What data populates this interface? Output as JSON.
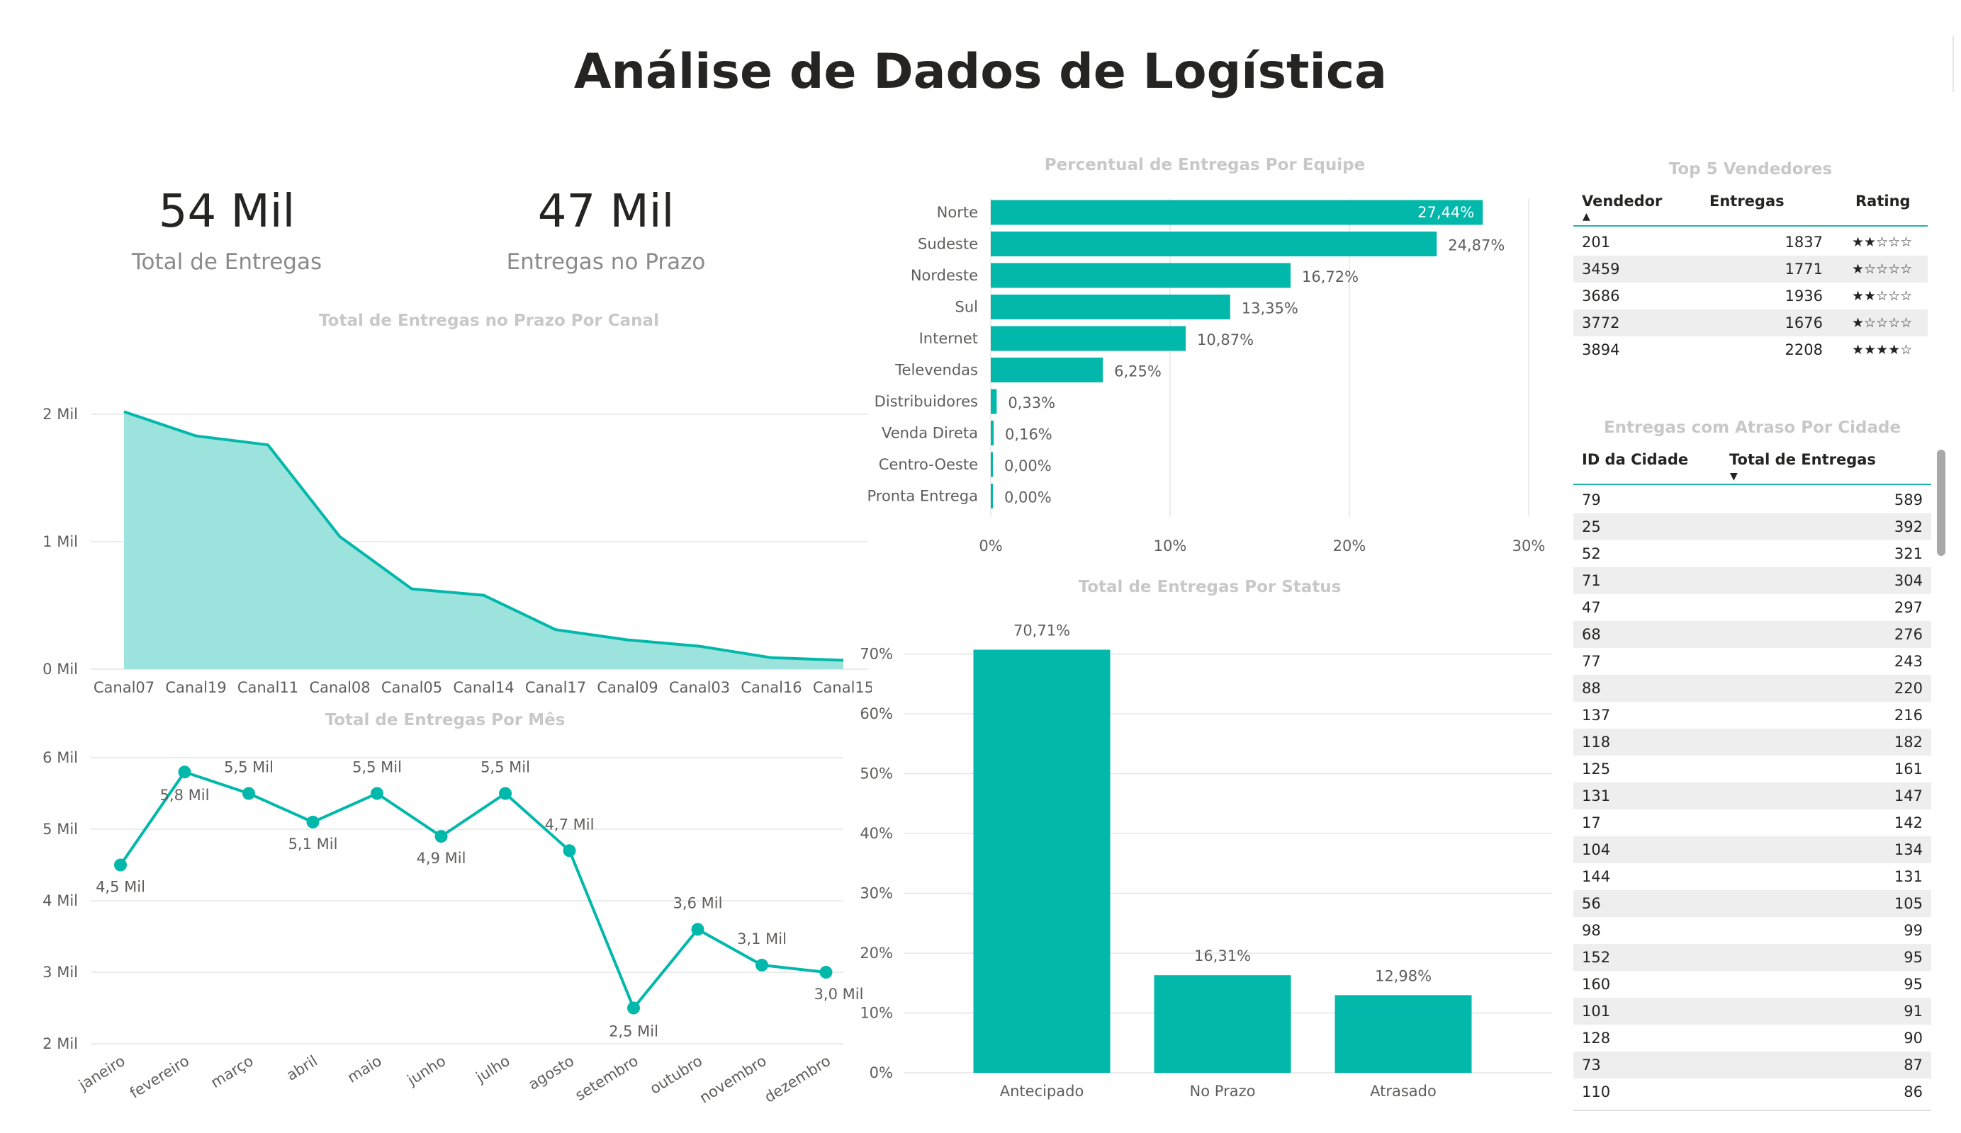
{
  "title": "Análise de Dados de Logística",
  "kpis": {
    "total": {
      "value": "54 Mil",
      "label": "Total de Entregas"
    },
    "prazo": {
      "value": "47 Mil",
      "label": "Entregas no Prazo"
    }
  },
  "colors": {
    "accent": "#01b8aa",
    "area_fill": "#9be3dc",
    "title_gray": "#c8c8c8",
    "axis_gray": "#605e5c"
  },
  "chart_data": [
    {
      "id": "canal",
      "type": "area",
      "title": "Total de Entregas no Prazo Por Canal",
      "categories": [
        "Canal07",
        "Canal19",
        "Canal11",
        "Canal08",
        "Canal05",
        "Canal14",
        "Canal17",
        "Canal09",
        "Canal03",
        "Canal16",
        "Canal15"
      ],
      "values": [
        2020,
        1830,
        1760,
        1040,
        630,
        580,
        310,
        230,
        180,
        90,
        70
      ],
      "yticks": [
        {
          "v": 0,
          "label": "0 Mil"
        },
        {
          "v": 1000,
          "label": "1 Mil"
        },
        {
          "v": 2000,
          "label": "2 Mil"
        }
      ],
      "ylim": [
        0,
        2000
      ],
      "grid": true
    },
    {
      "id": "mes",
      "type": "line",
      "title": "Total de Entregas Por Mês",
      "categories": [
        "janeiro",
        "fevereiro",
        "março",
        "abril",
        "maio",
        "junho",
        "julho",
        "agosto",
        "setembro",
        "outubro",
        "novembro",
        "dezembro"
      ],
      "values": [
        4500,
        5800,
        5500,
        5100,
        5500,
        4900,
        5500,
        4700,
        2500,
        3600,
        3100,
        3000
      ],
      "data_labels": [
        "4,5 Mil",
        "5,8 Mil",
        "5,5 Mil",
        "5,1 Mil",
        "5,5 Mil",
        "4,9 Mil",
        "5,5 Mil",
        "4,7 Mil",
        "2,5 Mil",
        "3,6 Mil",
        "3,1 Mil",
        "3,0 Mil"
      ],
      "yticks": [
        {
          "v": 2000,
          "label": "2 Mil"
        },
        {
          "v": 3000,
          "label": "3 Mil"
        },
        {
          "v": 4000,
          "label": "4 Mil"
        },
        {
          "v": 5000,
          "label": "5 Mil"
        },
        {
          "v": 6000,
          "label": "6 Mil"
        }
      ],
      "ylim": [
        2000,
        6000
      ],
      "grid": true
    },
    {
      "id": "equipe",
      "type": "bar",
      "orientation": "horizontal",
      "title": "Percentual de Entregas Por Equipe",
      "categories": [
        "Norte",
        "Sudeste",
        "Nordeste",
        "Sul",
        "Internet",
        "Televendas",
        "Distribuidores",
        "Venda Direta",
        "Centro-Oeste",
        "Pronta Entrega"
      ],
      "values": [
        27.44,
        24.87,
        16.72,
        13.35,
        10.87,
        6.25,
        0.33,
        0.16,
        0.0,
        0.0
      ],
      "data_labels": [
        "27,44%",
        "24,87%",
        "16,72%",
        "13,35%",
        "10,87%",
        "6,25%",
        "0,33%",
        "0,16%",
        "0,00%",
        "0,00%"
      ],
      "xticks": [
        {
          "v": 0,
          "label": "0%"
        },
        {
          "v": 10,
          "label": "10%"
        },
        {
          "v": 20,
          "label": "20%"
        },
        {
          "v": 30,
          "label": "30%"
        }
      ],
      "xlim": [
        0,
        30
      ],
      "grid": true
    },
    {
      "id": "status",
      "type": "bar",
      "title": "Total de Entregas Por Status",
      "categories": [
        "Antecipado",
        "No Prazo",
        "Atrasado"
      ],
      "values": [
        70.71,
        16.31,
        12.98
      ],
      "data_labels": [
        "70,71%",
        "16,31%",
        "12,98%"
      ],
      "yticks": [
        {
          "v": 0,
          "label": "0%"
        },
        {
          "v": 10,
          "label": "10%"
        },
        {
          "v": 20,
          "label": "20%"
        },
        {
          "v": 30,
          "label": "30%"
        },
        {
          "v": 40,
          "label": "40%"
        },
        {
          "v": 50,
          "label": "50%"
        },
        {
          "v": 60,
          "label": "60%"
        },
        {
          "v": 70,
          "label": "70%"
        }
      ],
      "ylim": [
        0,
        70
      ],
      "grid": true
    }
  ],
  "top5": {
    "title": "Top 5 Vendedores",
    "headers": {
      "vendedor": "Vendedor",
      "entregas": "Entregas",
      "rating": "Rating"
    },
    "rows": [
      {
        "vendedor": "201",
        "entregas": "1837",
        "rating": "★★☆☆☆"
      },
      {
        "vendedor": "3459",
        "entregas": "1771",
        "rating": "★☆☆☆☆"
      },
      {
        "vendedor": "3686",
        "entregas": "1936",
        "rating": "★★☆☆☆"
      },
      {
        "vendedor": "3772",
        "entregas": "1676",
        "rating": "★☆☆☆☆"
      },
      {
        "vendedor": "3894",
        "entregas": "2208",
        "rating": "★★★★☆"
      }
    ]
  },
  "atraso": {
    "title": "Entregas com Atraso Por Cidade",
    "headers": {
      "cidade": "ID da Cidade",
      "total": "Total de Entregas"
    },
    "rows": [
      {
        "id": "79",
        "total": "589"
      },
      {
        "id": "25",
        "total": "392"
      },
      {
        "id": "52",
        "total": "321"
      },
      {
        "id": "71",
        "total": "304"
      },
      {
        "id": "47",
        "total": "297"
      },
      {
        "id": "68",
        "total": "276"
      },
      {
        "id": "77",
        "total": "243"
      },
      {
        "id": "88",
        "total": "220"
      },
      {
        "id": "137",
        "total": "216"
      },
      {
        "id": "118",
        "total": "182"
      },
      {
        "id": "125",
        "total": "161"
      },
      {
        "id": "131",
        "total": "147"
      },
      {
        "id": "17",
        "total": "142"
      },
      {
        "id": "104",
        "total": "134"
      },
      {
        "id": "144",
        "total": "131"
      },
      {
        "id": "56",
        "total": "105"
      },
      {
        "id": "98",
        "total": "99"
      },
      {
        "id": "152",
        "total": "95"
      },
      {
        "id": "160",
        "total": "95"
      },
      {
        "id": "101",
        "total": "91"
      },
      {
        "id": "128",
        "total": "90"
      },
      {
        "id": "73",
        "total": "87"
      },
      {
        "id": "110",
        "total": "86"
      }
    ]
  }
}
